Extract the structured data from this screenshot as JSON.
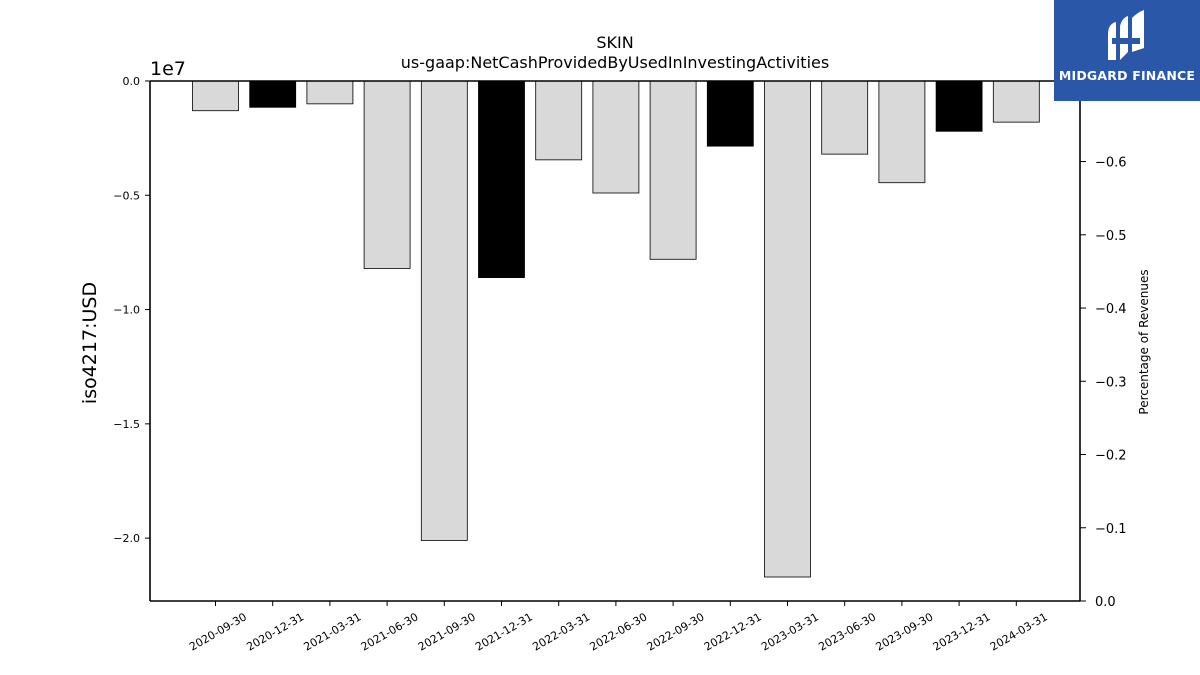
{
  "chart_data": {
    "type": "bar",
    "title": "SKIN",
    "subtitle": "us-gaap:NetCashProvidedByUsedInInvestingActivities",
    "ylabel": "iso4217:USD",
    "y_multiplier_label": "1e7",
    "y2label": "Percentage of Revenues",
    "categories": [
      "2020-09-30",
      "2020-12-31",
      "2021-03-31",
      "2021-06-30",
      "2021-09-30",
      "2021-12-31",
      "2022-03-31",
      "2022-06-30",
      "2022-09-30",
      "2022-12-31",
      "2023-03-31",
      "2023-06-30",
      "2023-09-30",
      "2023-12-31",
      "2024-03-31"
    ],
    "values": [
      -1.3,
      -1.15,
      -1.0,
      -8.2,
      -20.1,
      -8.6,
      -3.45,
      -4.9,
      -7.8,
      -2.85,
      -21.7,
      -3.2,
      -4.45,
      -2.2,
      -1.8
    ],
    "value_scale": "1e6 USD",
    "bar_colors": [
      "#d9d9d9",
      "#000000",
      "#d9d9d9",
      "#d9d9d9",
      "#d9d9d9",
      "#000000",
      "#d9d9d9",
      "#d9d9d9",
      "#d9d9d9",
      "#000000",
      "#d9d9d9",
      "#d9d9d9",
      "#d9d9d9",
      "#000000",
      "#d9d9d9"
    ],
    "ylim": [
      -22.75,
      0
    ],
    "yticks": [
      0.0,
      -0.5,
      -1.0,
      -1.5,
      -2.0
    ],
    "yticklabels": [
      "0.0",
      "−0.5",
      "−1.0",
      "−1.5",
      "−2.0"
    ],
    "y2lim": [
      0.0,
      -0.71
    ],
    "y2ticks": [
      -0.6,
      -0.5,
      -0.4,
      -0.3,
      -0.2,
      -0.1,
      0.0
    ],
    "y2ticklabels": [
      "−0.6",
      "−0.5",
      "−0.4",
      "−0.3",
      "−0.2",
      "−0.1",
      "0.0"
    ],
    "grid": false,
    "legend": "none"
  },
  "logo": {
    "text": "MIDGARD FINANCE",
    "color": "#2a57a8"
  }
}
